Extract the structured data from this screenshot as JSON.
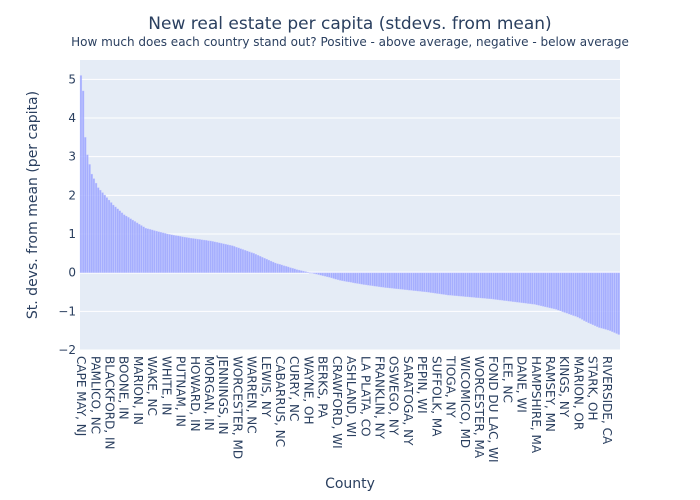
{
  "chart_data": {
    "type": "bar",
    "title": "New real estate per capita (stdevs. from mean)",
    "subtitle": "How much does each country stand out? Positive - above average, negative - below average",
    "xlabel": "County",
    "ylabel": "St. devs. from mean (per capita)",
    "ylim": [
      -2,
      5.5
    ],
    "y_ticks": [
      -2,
      -1,
      0,
      1,
      2,
      3,
      4,
      5
    ],
    "grid": true,
    "legend": "none",
    "n_bars": 250,
    "x_tick_labels": [
      "CAPE MAY, NJ",
      "PAMLICO, NC",
      "BLACKFORD, IN",
      "BOONE, IN",
      "MARION, IN",
      "WAKE, NC",
      "WHITE, IN",
      "PUTNAM, IN",
      "HOWARD, IN",
      "MORGAN, IN",
      "JENNINGS, IN",
      "WORCESTER, MD",
      "WARREN, NC",
      "LEWIS, NY",
      "CABARRUS, NC",
      "CURRY, NC",
      "WAYNE, OH",
      "BERKS, PA",
      "CRAWFORD, WI",
      "ASHLAND, WI",
      "LA PLATA, CO",
      "FRANKLIN, NY",
      "OSWEGO, NY",
      "SARATOGA, NY",
      "PEPIN, WI",
      "SUFFOLK, MA",
      "TIOGA, NY",
      "WICOMICO, MD",
      "WORCESTER, MA",
      "FOND DU LAC, WI",
      "LEE, NC",
      "DANE, WI",
      "HAMPSHIRE, MA",
      "RAMSEY, MN",
      "KINGS, NY",
      "MARION, OR",
      "STARK, OH",
      "RIVERSIDE, CA"
    ],
    "profile_x": [
      0,
      1,
      2,
      3,
      5,
      8,
      15,
      20,
      30,
      40,
      50,
      60,
      70,
      80,
      90,
      100,
      110,
      115,
      120,
      130,
      140,
      150,
      160,
      170,
      180,
      190,
      200,
      210,
      220,
      230,
      235,
      240,
      245,
      249
    ],
    "profile_y": [
      5.1,
      4.7,
      3.5,
      3.05,
      2.55,
      2.2,
      1.75,
      1.5,
      1.15,
      1.0,
      0.9,
      0.82,
      0.7,
      0.5,
      0.25,
      0.08,
      -0.05,
      -0.12,
      -0.2,
      -0.3,
      -0.38,
      -0.44,
      -0.5,
      -0.58,
      -0.63,
      -0.68,
      -0.75,
      -0.82,
      -0.95,
      -1.15,
      -1.3,
      -1.42,
      -1.5,
      -1.6
    ]
  }
}
